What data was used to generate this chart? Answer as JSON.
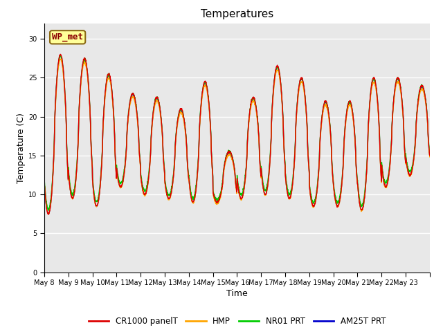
{
  "title": "Temperatures",
  "xlabel": "Time",
  "ylabel": "Temperature (C)",
  "ylim": [
    0,
    32
  ],
  "yticks": [
    0,
    5,
    10,
    15,
    20,
    25,
    30
  ],
  "background_color": "#e8e8e8",
  "fig_background": "#ffffff",
  "series": {
    "CR1000_panelT": {
      "color": "#dd0000",
      "label": "CR1000 panelT",
      "lw": 1.0
    },
    "HMP": {
      "color": "#ffa500",
      "label": "HMP",
      "lw": 1.0
    },
    "NR01_PRT": {
      "color": "#00cc00",
      "label": "NR01 PRT",
      "lw": 1.0
    },
    "AM25T_PRT": {
      "color": "#0000cc",
      "label": "AM25T PRT",
      "lw": 1.0
    }
  },
  "xtick_labels": [
    "May 8",
    "May 9",
    "May 10",
    "May 11",
    "May 12",
    "May 13",
    "May 14",
    "May 15",
    "May 16",
    "May 17",
    "May 18",
    "May 19",
    "May 20",
    "May 21",
    "May 22",
    "May 23"
  ],
  "annotation": {
    "text": "WP_met",
    "fontsize": 9,
    "color": "#8b0000",
    "bg_color": "#ffff99",
    "border_color": "#8b6914"
  },
  "n_days": 16,
  "samples_per_day": 144,
  "daily_peaks": [
    28.0,
    27.5,
    25.5,
    23.0,
    22.5,
    21.0,
    24.5,
    15.5,
    22.5,
    26.5,
    25.0,
    22.0,
    22.0,
    25.0,
    25.0,
    24.0
  ],
  "daily_mins": [
    7.5,
    9.5,
    8.5,
    11.0,
    10.0,
    9.5,
    9.0,
    9.0,
    9.5,
    10.0,
    9.5,
    8.5,
    8.5,
    8.0,
    11.0,
    12.5
  ]
}
